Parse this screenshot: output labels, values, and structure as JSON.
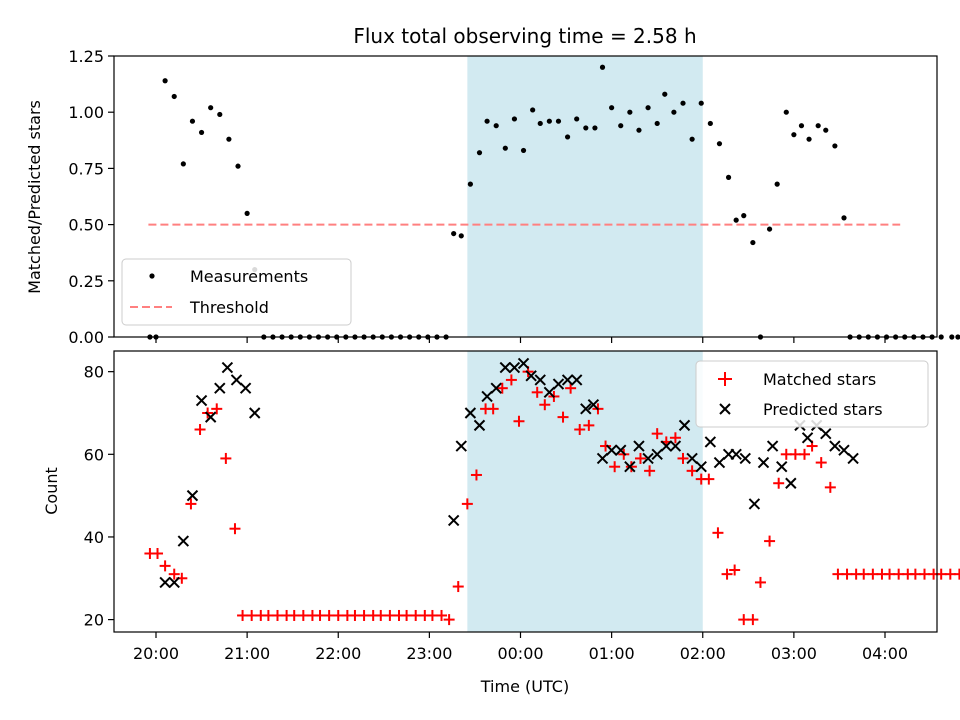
{
  "chart_data": [
    {
      "type": "scatter",
      "title": "Flux total observing time = 2.58 h",
      "ylabel": "Matched/Predicted stars",
      "xlabel": "",
      "ylim": [
        0,
        1.25
      ],
      "y_ticks": [
        "0.00",
        "0.25",
        "0.50",
        "0.75",
        "1.00",
        "1.25"
      ],
      "highlight_band": {
        "x_start": "23:25",
        "x_end": "02:00",
        "color": "#add8e6"
      },
      "legend": {
        "position": "lower-left",
        "entries": [
          "Measurements",
          "Threshold"
        ]
      },
      "threshold": {
        "name": "Threshold",
        "value": 0.5,
        "x_start": "19:55",
        "x_end": "04:10",
        "color": "#ff8080"
      },
      "series": [
        {
          "name": "Measurements",
          "marker": "dot",
          "color": "#000000",
          "points": [
            [
              "19:56",
              0.0
            ],
            [
              "20:00",
              0.0
            ],
            [
              "20:06",
              1.14
            ],
            [
              "20:12",
              1.07
            ],
            [
              "20:18",
              0.77
            ],
            [
              "20:24",
              0.96
            ],
            [
              "20:30",
              0.91
            ],
            [
              "20:36",
              1.02
            ],
            [
              "20:42",
              0.99
            ],
            [
              "20:48",
              0.88
            ],
            [
              "20:54",
              0.76
            ],
            [
              "21:00",
              0.55
            ],
            [
              "21:05",
              0.3
            ],
            [
              "21:11",
              0.0
            ],
            [
              "21:17",
              0.0
            ],
            [
              "21:23",
              0.0
            ],
            [
              "21:29",
              0.0
            ],
            [
              "21:35",
              0.0
            ],
            [
              "21:41",
              0.0
            ],
            [
              "21:47",
              0.0
            ],
            [
              "21:53",
              0.0
            ],
            [
              "21:59",
              0.0
            ],
            [
              "22:05",
              0.0
            ],
            [
              "22:11",
              0.0
            ],
            [
              "22:17",
              0.0
            ],
            [
              "22:23",
              0.0
            ],
            [
              "22:29",
              0.0
            ],
            [
              "22:35",
              0.0
            ],
            [
              "22:41",
              0.0
            ],
            [
              "22:47",
              0.0
            ],
            [
              "22:53",
              0.0
            ],
            [
              "22:59",
              0.0
            ],
            [
              "23:05",
              0.0
            ],
            [
              "23:11",
              0.0
            ],
            [
              "23:16",
              0.46
            ],
            [
              "23:21",
              0.45
            ],
            [
              "23:27",
              0.68
            ],
            [
              "23:33",
              0.82
            ],
            [
              "23:38",
              0.96
            ],
            [
              "23:44",
              0.94
            ],
            [
              "23:50",
              0.84
            ],
            [
              "23:56",
              0.97
            ],
            [
              "00:02",
              0.83
            ],
            [
              "00:08",
              1.01
            ],
            [
              "00:13",
              0.95
            ],
            [
              "00:19",
              0.96
            ],
            [
              "00:25",
              0.96
            ],
            [
              "00:31",
              0.89
            ],
            [
              "00:37",
              0.97
            ],
            [
              "00:43",
              0.93
            ],
            [
              "00:49",
              0.93
            ],
            [
              "00:54",
              1.2
            ],
            [
              "01:00",
              1.02
            ],
            [
              "01:06",
              0.94
            ],
            [
              "01:12",
              1.0
            ],
            [
              "01:18",
              0.92
            ],
            [
              "01:24",
              1.02
            ],
            [
              "01:30",
              0.95
            ],
            [
              "01:35",
              1.08
            ],
            [
              "01:41",
              1.0
            ],
            [
              "01:47",
              1.04
            ],
            [
              "01:53",
              0.88
            ],
            [
              "01:59",
              1.04
            ],
            [
              "02:05",
              0.95
            ],
            [
              "02:11",
              0.86
            ],
            [
              "02:17",
              0.71
            ],
            [
              "02:22",
              0.52
            ],
            [
              "02:27",
              0.54
            ],
            [
              "02:33",
              0.42
            ],
            [
              "02:38",
              0.0
            ],
            [
              "02:44",
              0.48
            ],
            [
              "02:49",
              0.68
            ],
            [
              "02:55",
              1.0
            ],
            [
              "03:00",
              0.9
            ],
            [
              "03:05",
              0.94
            ],
            [
              "03:10",
              0.88
            ],
            [
              "03:16",
              0.94
            ],
            [
              "03:21",
              0.92
            ],
            [
              "03:27",
              0.85
            ],
            [
              "03:33",
              0.53
            ],
            [
              "03:37",
              0.0
            ],
            [
              "03:43",
              0.0
            ],
            [
              "03:49",
              0.0
            ],
            [
              "03:55",
              0.0
            ],
            [
              "04:01",
              0.0
            ],
            [
              "04:07",
              0.0
            ],
            [
              "04:13",
              0.0
            ],
            [
              "04:19",
              0.0
            ],
            [
              "04:25",
              0.0
            ],
            [
              "04:31",
              0.0
            ],
            [
              "04:37",
              0.0
            ],
            [
              "04:44",
              0.0
            ],
            [
              "04:48",
              0.0
            ]
          ]
        }
      ]
    },
    {
      "type": "scatter",
      "title": "",
      "ylabel": "Count",
      "xlabel": "Time (UTC)",
      "ylim": [
        17,
        85
      ],
      "y_ticks": [
        "20",
        "40",
        "60",
        "80"
      ],
      "x_ticks": [
        "20:00",
        "21:00",
        "22:00",
        "23:00",
        "00:00",
        "01:00",
        "02:00",
        "03:00",
        "04:00"
      ],
      "highlight_band": {
        "x_start": "23:25",
        "x_end": "02:00",
        "color": "#add8e6"
      },
      "legend": {
        "position": "top-right",
        "entries": [
          "Matched stars",
          "Predicted stars"
        ]
      },
      "series": [
        {
          "name": "Matched stars",
          "marker": "plus",
          "color": "#ff0000",
          "points": [
            [
              "19:56",
              36
            ],
            [
              "20:01",
              36
            ],
            [
              "20:06",
              33
            ],
            [
              "20:12",
              31
            ],
            [
              "20:17",
              30
            ],
            [
              "20:23",
              48
            ],
            [
              "20:29",
              66
            ],
            [
              "20:34",
              70
            ],
            [
              "20:40",
              71
            ],
            [
              "20:46",
              59
            ],
            [
              "20:52",
              42
            ],
            [
              "20:57",
              21
            ],
            [
              "21:03",
              21
            ],
            [
              "21:09",
              21
            ],
            [
              "21:14",
              21
            ],
            [
              "21:20",
              21
            ],
            [
              "21:26",
              21
            ],
            [
              "21:31",
              21
            ],
            [
              "21:37",
              21
            ],
            [
              "21:43",
              21
            ],
            [
              "21:48",
              21
            ],
            [
              "21:54",
              21
            ],
            [
              "22:00",
              21
            ],
            [
              "22:06",
              21
            ],
            [
              "22:11",
              21
            ],
            [
              "22:17",
              21
            ],
            [
              "22:23",
              21
            ],
            [
              "22:28",
              21
            ],
            [
              "22:34",
              21
            ],
            [
              "22:40",
              21
            ],
            [
              "22:45",
              21
            ],
            [
              "22:51",
              21
            ],
            [
              "22:57",
              21
            ],
            [
              "23:02",
              21
            ],
            [
              "23:08",
              21
            ],
            [
              "23:13",
              20
            ],
            [
              "23:19",
              28
            ],
            [
              "23:25",
              48
            ],
            [
              "23:31",
              55
            ],
            [
              "23:37",
              71
            ],
            [
              "23:42",
              71
            ],
            [
              "23:48",
              76
            ],
            [
              "23:54",
              78
            ],
            [
              "23:59",
              68
            ],
            [
              "00:05",
              80
            ],
            [
              "00:11",
              75
            ],
            [
              "00:16",
              72
            ],
            [
              "00:22",
              74
            ],
            [
              "00:28",
              69
            ],
            [
              "00:33",
              76
            ],
            [
              "00:39",
              66
            ],
            [
              "00:45",
              67
            ],
            [
              "00:51",
              71
            ],
            [
              "00:56",
              62
            ],
            [
              "01:02",
              57
            ],
            [
              "01:08",
              60
            ],
            [
              "01:13",
              57
            ],
            [
              "01:19",
              59
            ],
            [
              "01:25",
              56
            ],
            [
              "01:30",
              65
            ],
            [
              "01:36",
              63
            ],
            [
              "01:42",
              64
            ],
            [
              "01:47",
              59
            ],
            [
              "01:53",
              56
            ],
            [
              "01:59",
              54
            ],
            [
              "02:04",
              54
            ],
            [
              "02:10",
              41
            ],
            [
              "02:16",
              31
            ],
            [
              "02:21",
              32
            ],
            [
              "02:27",
              20
            ],
            [
              "02:33",
              20
            ],
            [
              "02:38",
              29
            ],
            [
              "02:44",
              39
            ],
            [
              "02:50",
              53
            ],
            [
              "02:55",
              60
            ],
            [
              "03:01",
              60
            ],
            [
              "03:07",
              60
            ],
            [
              "03:12",
              62
            ],
            [
              "03:18",
              58
            ],
            [
              "03:24",
              52
            ],
            [
              "03:29",
              31
            ],
            [
              "03:35",
              31
            ],
            [
              "03:41",
              31
            ],
            [
              "03:46",
              31
            ],
            [
              "03:52",
              31
            ],
            [
              "03:58",
              31
            ],
            [
              "04:03",
              31
            ],
            [
              "04:09",
              31
            ],
            [
              "04:15",
              31
            ],
            [
              "04:20",
              31
            ],
            [
              "04:26",
              31
            ],
            [
              "04:32",
              31
            ],
            [
              "04:37",
              31
            ],
            [
              "04:43",
              31
            ],
            [
              "04:49",
              31
            ]
          ]
        },
        {
          "name": "Predicted stars",
          "marker": "x",
          "color": "#000000",
          "points": [
            [
              "20:06",
              29
            ],
            [
              "20:12",
              29
            ],
            [
              "20:18",
              39
            ],
            [
              "20:24",
              50
            ],
            [
              "20:30",
              73
            ],
            [
              "20:36",
              69
            ],
            [
              "20:42",
              76
            ],
            [
              "20:47",
              81
            ],
            [
              "20:53",
              78
            ],
            [
              "20:59",
              76
            ],
            [
              "21:05",
              70
            ],
            [
              "23:16",
              44
            ],
            [
              "23:21",
              62
            ],
            [
              "23:27",
              70
            ],
            [
              "23:33",
              67
            ],
            [
              "23:38",
              74
            ],
            [
              "23:44",
              76
            ],
            [
              "23:50",
              81
            ],
            [
              "23:56",
              81
            ],
            [
              "00:02",
              82
            ],
            [
              "00:07",
              79
            ],
            [
              "00:13",
              78
            ],
            [
              "00:19",
              75
            ],
            [
              "00:25",
              77
            ],
            [
              "00:31",
              78
            ],
            [
              "00:37",
              78
            ],
            [
              "00:43",
              71
            ],
            [
              "00:48",
              72
            ],
            [
              "00:54",
              59
            ],
            [
              "01:00",
              61
            ],
            [
              "01:06",
              61
            ],
            [
              "01:12",
              57
            ],
            [
              "01:18",
              62
            ],
            [
              "01:24",
              59
            ],
            [
              "01:30",
              60
            ],
            [
              "01:36",
              62
            ],
            [
              "01:42",
              62
            ],
            [
              "01:48",
              67
            ],
            [
              "01:53",
              59
            ],
            [
              "01:59",
              57
            ],
            [
              "02:05",
              63
            ],
            [
              "02:11",
              58
            ],
            [
              "02:17",
              60
            ],
            [
              "02:22",
              60
            ],
            [
              "02:28",
              59
            ],
            [
              "02:34",
              48
            ],
            [
              "02:40",
              58
            ],
            [
              "02:46",
              62
            ],
            [
              "02:52",
              57
            ],
            [
              "02:58",
              53
            ],
            [
              "03:04",
              67
            ],
            [
              "03:09",
              64
            ],
            [
              "03:15",
              67
            ],
            [
              "03:21",
              65
            ],
            [
              "03:27",
              62
            ],
            [
              "03:33",
              61
            ],
            [
              "03:39",
              59
            ]
          ]
        }
      ]
    }
  ]
}
